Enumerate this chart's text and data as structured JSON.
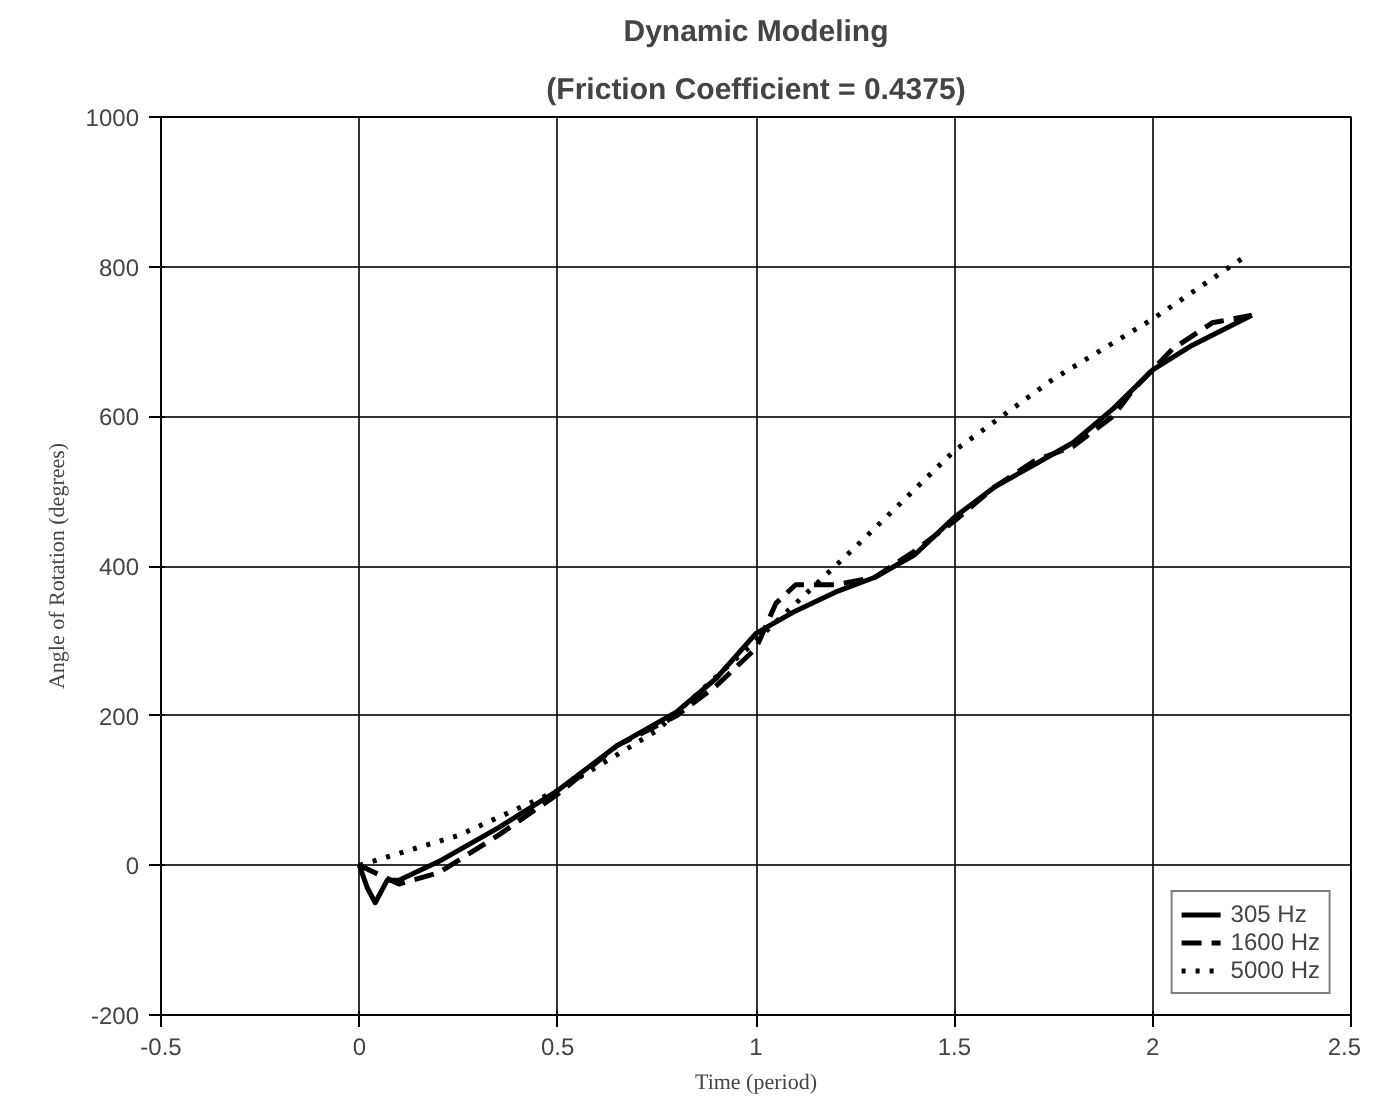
{
  "chart_data": {
    "type": "line",
    "title": "Dynamic Modeling",
    "subtitle": "(Friction Coefficient = 0.4375)",
    "xlabel": "Time (period)",
    "ylabel": "Angle of Rotation (degrees)",
    "xlim": [
      -0.5,
      2.5
    ],
    "xticks": [
      -0.5,
      0,
      0.5,
      1,
      1.5,
      2,
      2.5
    ],
    "ylim": [
      -200,
      1000
    ],
    "yticks": [
      -200,
      0,
      200,
      400,
      600,
      800,
      1000
    ],
    "grid": true,
    "legend": "bottom right",
    "series": [
      {
        "name": "305 Hz",
        "color": "#000000",
        "line_style": "solid",
        "x": [
          0,
          0.02,
          0.04,
          0.07,
          0.1,
          0.2,
          0.35,
          0.5,
          0.65,
          0.8,
          0.9,
          1.0,
          1.1,
          1.2,
          1.3,
          1.4,
          1.5,
          1.6,
          1.7,
          1.8,
          1.9,
          2.0,
          2.1,
          2.25
        ],
        "values": [
          0,
          -30,
          -50,
          -20,
          -20,
          5,
          50,
          100,
          160,
          205,
          250,
          310,
          340,
          365,
          385,
          415,
          465,
          505,
          535,
          565,
          610,
          662,
          695,
          735
        ]
      },
      {
        "name": "1600 Hz",
        "color": "#000000",
        "line_style": "dashed",
        "x": [
          0,
          0.1,
          0.2,
          0.35,
          0.5,
          0.65,
          0.8,
          0.9,
          1.0,
          1.05,
          1.1,
          1.2,
          1.3,
          1.4,
          1.5,
          1.6,
          1.7,
          1.8,
          1.9,
          1.95,
          2.05,
          2.15,
          2.25
        ],
        "values": [
          0,
          -25,
          -10,
          40,
          95,
          160,
          200,
          240,
          290,
          350,
          375,
          375,
          385,
          420,
          460,
          505,
          540,
          560,
          600,
          635,
          690,
          725,
          735
        ]
      },
      {
        "name": "5000 Hz",
        "color": "#000000",
        "line_style": "dotted",
        "x": [
          0,
          0.25,
          0.5,
          0.75,
          1.0,
          1.25,
          1.5,
          1.75,
          2.0,
          2.24
        ],
        "values": [
          0,
          40,
          100,
          180,
          300,
          425,
          554,
          650,
          730,
          816
        ]
      }
    ]
  }
}
